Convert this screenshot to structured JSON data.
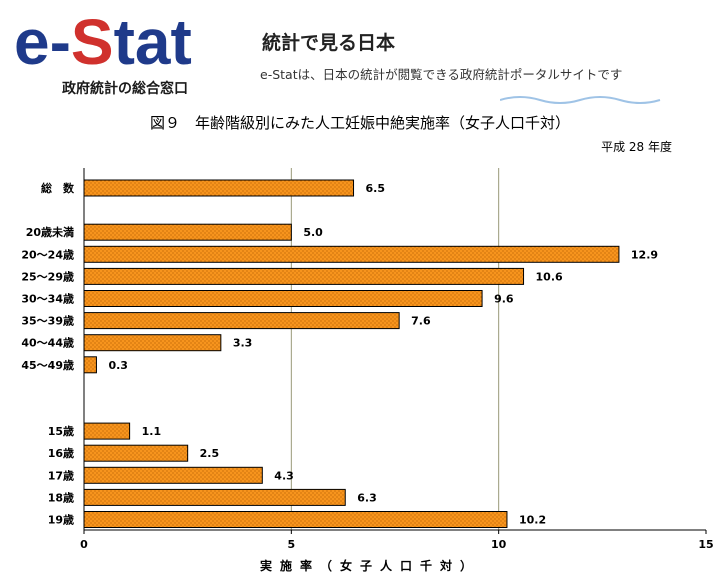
{
  "header": {
    "logo_e": "e",
    "logo_dash": "-",
    "logo_s": "S",
    "logo_tat": "tat",
    "logo_sub": "政府統計の総合窓口",
    "site_title": "統計で見る日本",
    "site_desc": "e-Statは、日本の統計が閲覧できる政府統計ポータルサイトです",
    "colors": {
      "brand_blue": "#1f3a8a",
      "brand_red": "#d0312d"
    }
  },
  "figure": {
    "title": "図９　年齢階級別にみた人工妊娠中絶実施率（女子人口千対）",
    "year": "平成 28 年度"
  },
  "chart_data": {
    "type": "bar",
    "orientation": "horizontal",
    "categories": [
      "総　数",
      "20歳未満",
      "20～24歳",
      "25～29歳",
      "30～34歳",
      "35～39歳",
      "40～44歳",
      "45～49歳",
      "15歳",
      "16歳",
      "17歳",
      "18歳",
      "19歳"
    ],
    "values": [
      6.5,
      5.0,
      12.9,
      10.6,
      9.6,
      7.6,
      3.3,
      0.3,
      1.1,
      2.5,
      4.3,
      6.3,
      10.2
    ],
    "value_labels": [
      "6.5",
      "5.0",
      "12.9",
      "10.6",
      "9.6",
      "7.6",
      "3.3",
      "0.3",
      "1.1",
      "2.5",
      "4.3",
      "6.3",
      "10.2"
    ],
    "xlabel": "実施率（女子人口千対）",
    "xlim": [
      0,
      15
    ],
    "xticks": [
      0,
      5,
      10,
      15
    ],
    "grid": "vertical",
    "bar_color": "#f7941d",
    "bar_edge": "#000000"
  }
}
